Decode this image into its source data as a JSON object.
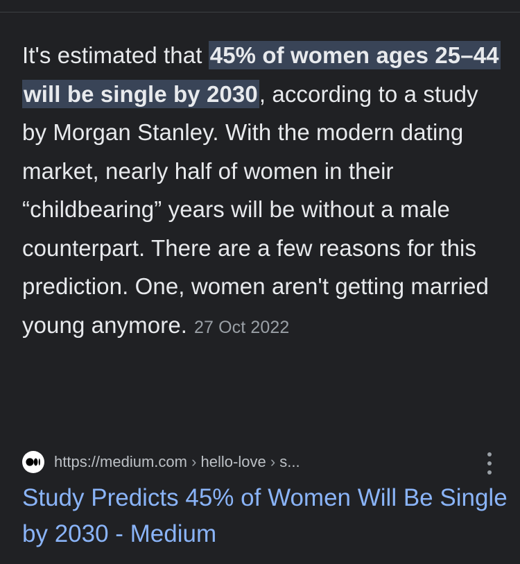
{
  "snippet": {
    "text_before": "It's estimated that ",
    "highlight": "45% of women ages 25–44 will be single by 2030",
    "text_after": ", according to a study by Morgan Stanley. With the modern dating market, nearly half of women in their “childbearing” years will be without a male counterpart. There are a few reasons for this prediction. One, women aren't getting married young anymore.",
    "date": "27 Oct 2022"
  },
  "result": {
    "favicon": "medium-logo-icon",
    "url_base": "https://medium.com",
    "breadcrumb_1": "hello-love",
    "breadcrumb_2": "s...",
    "separator": "›",
    "title": "Study Predicts 45% of Women Will Be Single by 2030 - Medium"
  },
  "colors": {
    "background": "#202124",
    "text": "#e8eaed",
    "highlight_bg": "#394457",
    "link": "#8ab4f8",
    "muted": "#9aa0a6"
  }
}
